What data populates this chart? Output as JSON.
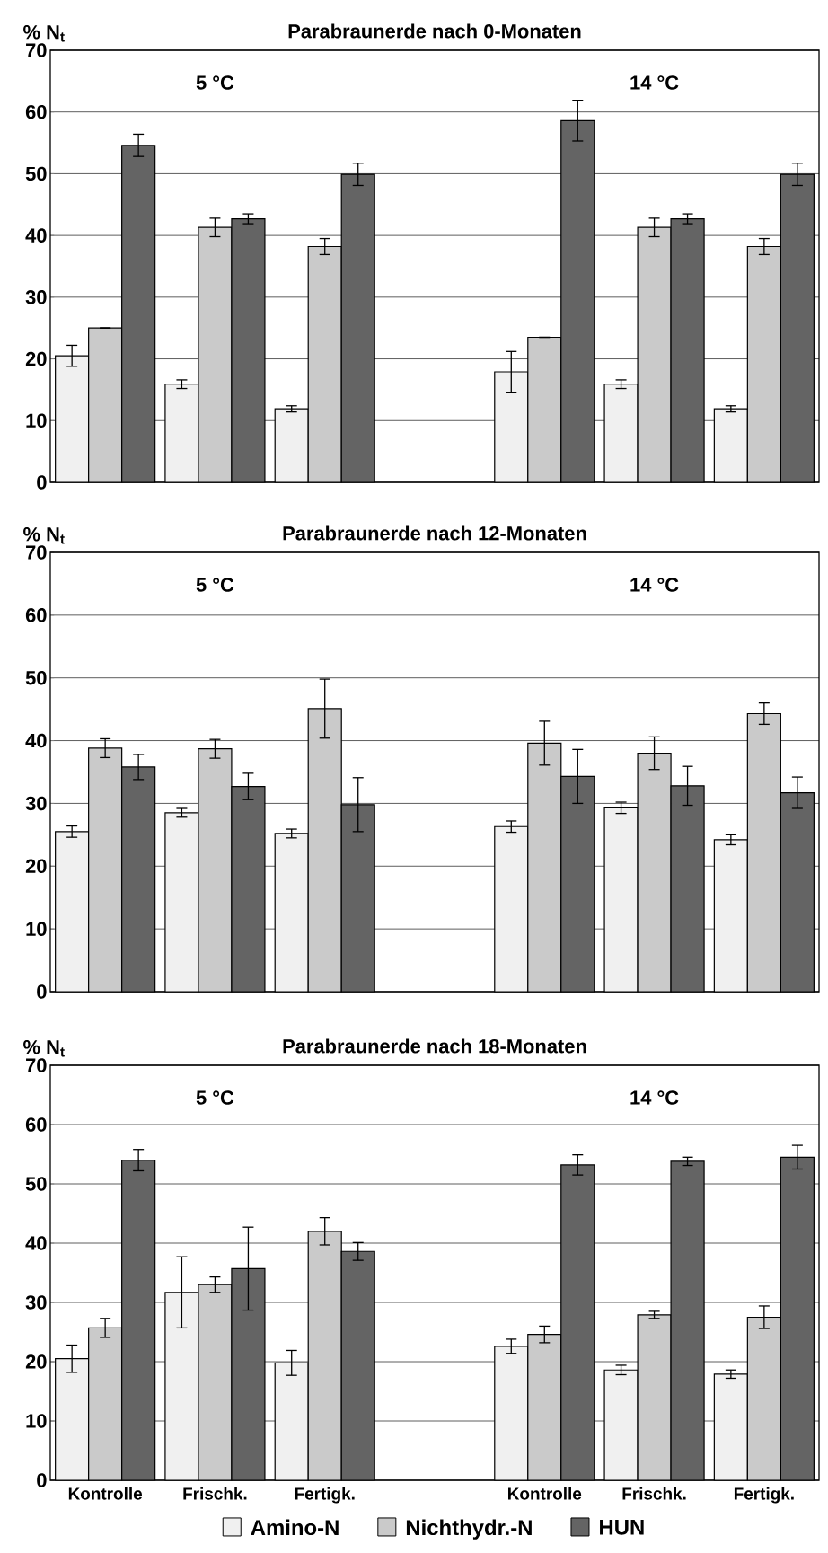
{
  "chart_data": [
    {
      "type": "bar",
      "title": "Parabraunerde nach 0-Monaten",
      "ylabel": "% N$_{t}$",
      "categories": [
        null,
        null,
        null,
        null,
        null,
        null,
        null
      ],
      "ylim": [
        0,
        70
      ],
      "yticks": [
        0,
        10,
        20,
        30,
        40,
        50,
        60,
        70
      ],
      "grid": "y",
      "tick_labels": "y",
      "annotations": [
        "5 °C",
        "14 °C"
      ],
      "series": [
        {
          "color": "#f0f0f0",
          "values": [
            20.5,
            15.9,
            11.9,
            null,
            17.9,
            15.9,
            11.9
          ],
          "errors": [
            1.7,
            0.7,
            0.5,
            null,
            3.3,
            0.7,
            0.5
          ]
        },
        {
          "color": "#cacaca",
          "values": [
            25.0,
            41.3,
            38.2,
            null,
            23.5,
            41.3,
            38.2
          ],
          "errors": [
            0,
            1.5,
            1.3,
            null,
            0,
            1.5,
            1.3
          ]
        },
        {
          "color": "#646464",
          "values": [
            54.6,
            42.7,
            49.9,
            null,
            58.6,
            42.7,
            49.9
          ],
          "errors": [
            1.8,
            0.8,
            1.8,
            null,
            3.3,
            0.8,
            1.8
          ]
        }
      ]
    },
    {
      "type": "bar",
      "title": "Parabraunerde nach 12-Monaten",
      "ylabel": "% N$_{t}$",
      "categories": [
        null,
        null,
        null,
        null,
        null,
        null,
        null
      ],
      "ylim": [
        0,
        70
      ],
      "yticks": [
        0,
        10,
        20,
        30,
        40,
        50,
        60,
        70
      ],
      "grid": "y",
      "tick_labels": "y",
      "annotations": [
        "5 °C",
        "14 °C"
      ],
      "series": [
        {
          "color": "#f0f0f0",
          "values": [
            25.5,
            28.5,
            25.2,
            null,
            26.3,
            29.3,
            24.2
          ],
          "errors": [
            0.9,
            0.7,
            0.7,
            null,
            0.9,
            0.9,
            0.8
          ]
        },
        {
          "color": "#cacaca",
          "values": [
            38.8,
            38.7,
            45.1,
            null,
            39.6,
            38.0,
            44.3
          ],
          "errors": [
            1.5,
            1.5,
            4.7,
            null,
            3.5,
            2.6,
            1.7
          ]
        },
        {
          "color": "#646464",
          "values": [
            35.8,
            32.7,
            29.8,
            null,
            34.3,
            32.8,
            31.7
          ],
          "errors": [
            2.0,
            2.1,
            4.3,
            null,
            4.3,
            3.1,
            2.5
          ]
        }
      ]
    },
    {
      "type": "bar",
      "title": "Parabraunerde nach 18-Monaten",
      "ylabel": "% N$_{t}$",
      "categories": [
        "Kontrolle",
        "Frischk.",
        "Fertigk.",
        null,
        "Kontrolle",
        "Frischk.",
        "Fertigk."
      ],
      "ylim": [
        0,
        70
      ],
      "yticks": [
        0,
        10,
        20,
        30,
        40,
        50,
        60,
        70
      ],
      "grid": "y",
      "legend": "bottom",
      "annotations": [
        "5 °C",
        "14 °C"
      ],
      "series": [
        {
          "name": "Amino-N",
          "color": "#f0f0f0",
          "values": [
            20.5,
            31.7,
            19.8,
            null,
            22.6,
            18.6,
            17.9
          ],
          "errors": [
            2.3,
            6.0,
            2.1,
            null,
            1.2,
            0.8,
            0.7
          ]
        },
        {
          "name": "Nichthydr.-N",
          "color": "#cacaca",
          "values": [
            25.7,
            33.0,
            42.0,
            null,
            24.6,
            27.9,
            27.5
          ],
          "errors": [
            1.6,
            1.3,
            2.3,
            null,
            1.4,
            0.6,
            1.9
          ]
        },
        {
          "name": "HUN",
          "color": "#646464",
          "values": [
            54.0,
            35.7,
            38.6,
            null,
            53.2,
            53.8,
            54.5
          ],
          "errors": [
            1.8,
            7.0,
            1.5,
            null,
            1.7,
            0.7,
            2.0
          ]
        }
      ]
    }
  ]
}
